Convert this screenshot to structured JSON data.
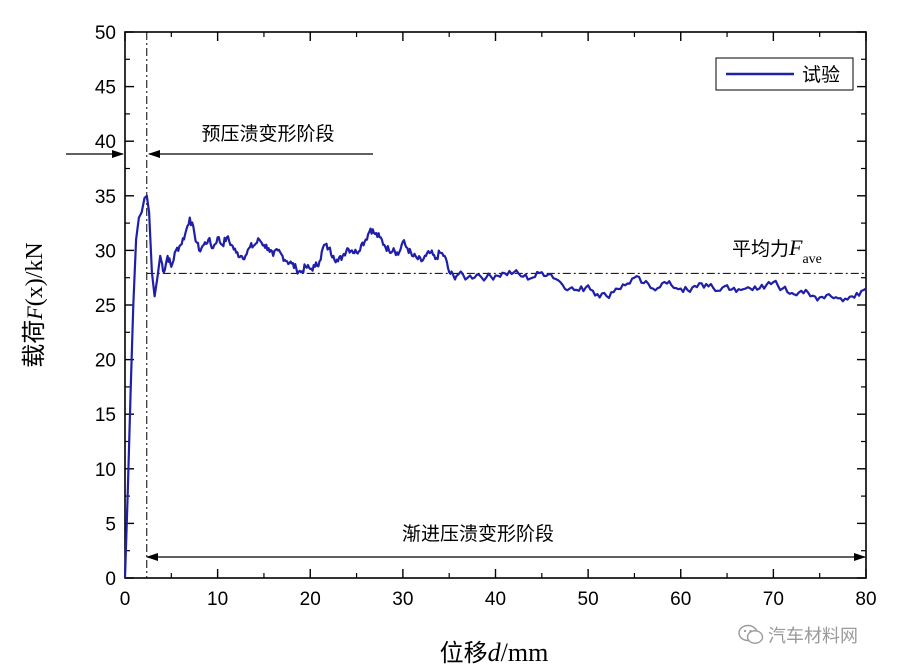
{
  "chart_data": {
    "type": "line",
    "xlabel": {
      "prefix": "位移",
      "var": "d",
      "unit": "/mm"
    },
    "ylabel": {
      "prefix": "载荷",
      "var": "F",
      "arg": "(x)",
      "unit": "/kN"
    },
    "xlim": [
      0,
      80
    ],
    "ylim": [
      0,
      50
    ],
    "xticks": [
      0,
      10,
      20,
      30,
      40,
      50,
      60,
      70,
      80
    ],
    "yticks": [
      0,
      5,
      10,
      15,
      20,
      25,
      30,
      35,
      40,
      45,
      50
    ],
    "legend": {
      "label": "试验",
      "position": "top-right"
    },
    "colors": {
      "series": "#1f1fa8",
      "axis": "#000000"
    },
    "series": [
      {
        "name": "试验",
        "x": [
          0,
          0.3,
          0.6,
          0.9,
          1.2,
          1.5,
          1.8,
          2.1,
          2.35,
          2.6,
          2.9,
          3.2,
          3.5,
          3.8,
          4.2,
          4.6,
          5.0,
          5.5,
          6.0,
          6.5,
          7.0,
          7.5,
          8.0,
          8.5,
          9.0,
          9.5,
          10.0,
          10.5,
          11.0,
          11.5,
          12.0,
          12.5,
          13.0,
          13.5,
          14.0,
          14.5,
          15.0,
          15.5,
          16.0,
          16.5,
          17.0,
          17.5,
          18.0,
          18.5,
          19.0,
          19.5,
          20.0,
          20.5,
          21.0,
          21.5,
          22.0,
          22.5,
          23.0,
          23.5,
          24.0,
          24.5,
          25.0,
          25.5,
          26.0,
          26.5,
          27.0,
          27.5,
          28.0,
          28.5,
          29.0,
          29.5,
          30.0,
          30.5,
          31.0,
          31.5,
          32.0,
          32.5,
          33.0,
          33.5,
          34.0,
          34.5,
          35.0,
          35.5,
          36.0,
          37.0,
          38.0,
          39.0,
          40.0,
          41.0,
          42.0,
          43.0,
          44.0,
          45.0,
          46.0,
          47.0,
          48.0,
          49.0,
          50.0,
          51.0,
          52.0,
          53.0,
          54.0,
          55.0,
          56.0,
          57.0,
          58.0,
          59.0,
          60.0,
          61.0,
          62.0,
          63.0,
          64.0,
          65.0,
          66.0,
          67.0,
          68.0,
          69.0,
          70.0,
          71.0,
          72.0,
          73.0,
          74.0,
          75.0,
          76.0,
          77.0,
          78.0,
          79.0,
          80.0
        ],
        "y": [
          0,
          8,
          17,
          25,
          31,
          33,
          33.5,
          34.8,
          35,
          33.5,
          28,
          25.8,
          27.5,
          29.5,
          28,
          29.5,
          28.5,
          30,
          30.5,
          31.5,
          33,
          31.5,
          30,
          30.5,
          31,
          30.2,
          31.2,
          30.5,
          31.2,
          30.5,
          29.8,
          29.5,
          29.5,
          30.3,
          30.5,
          31,
          30.5,
          30.2,
          29.5,
          30,
          29.5,
          29,
          28.8,
          28.3,
          28,
          28.5,
          28.3,
          28.5,
          29,
          30.5,
          30.2,
          29.5,
          29,
          29.5,
          30.2,
          30,
          29.8,
          30.5,
          31,
          32,
          31.5,
          31.2,
          30.5,
          30,
          30.2,
          29.6,
          30.8,
          30.2,
          29.5,
          29.3,
          29,
          29.5,
          29.8,
          29.2,
          29.8,
          29.5,
          28,
          27.6,
          27.8,
          27.5,
          27.8,
          27.5,
          27.7,
          27.9,
          28,
          27.6,
          27.5,
          28,
          27.8,
          27.1,
          26.5,
          26.3,
          26.8,
          26,
          25.8,
          26.5,
          26.8,
          27.5,
          27,
          26.5,
          27,
          26.8,
          26.5,
          26.2,
          27,
          26.7,
          26.3,
          26.8,
          26.2,
          26.5,
          26.7,
          26.5,
          27.1,
          26.5,
          26.1,
          26.3,
          25.8,
          25.7,
          26,
          25.6,
          25.5,
          26.1,
          26.5
        ]
      }
    ],
    "annotations": {
      "pre_crush_label": "预压溃变形阶段",
      "progressive_label": "渐进压溃变形阶段",
      "average_label": "平均力",
      "average_var": "F",
      "average_sub": "ave",
      "average_value": 27.9,
      "boundary_x": 2.35
    }
  },
  "watermark": {
    "text": "汽车材料网",
    "icon": "wechat-bubble-icon"
  }
}
